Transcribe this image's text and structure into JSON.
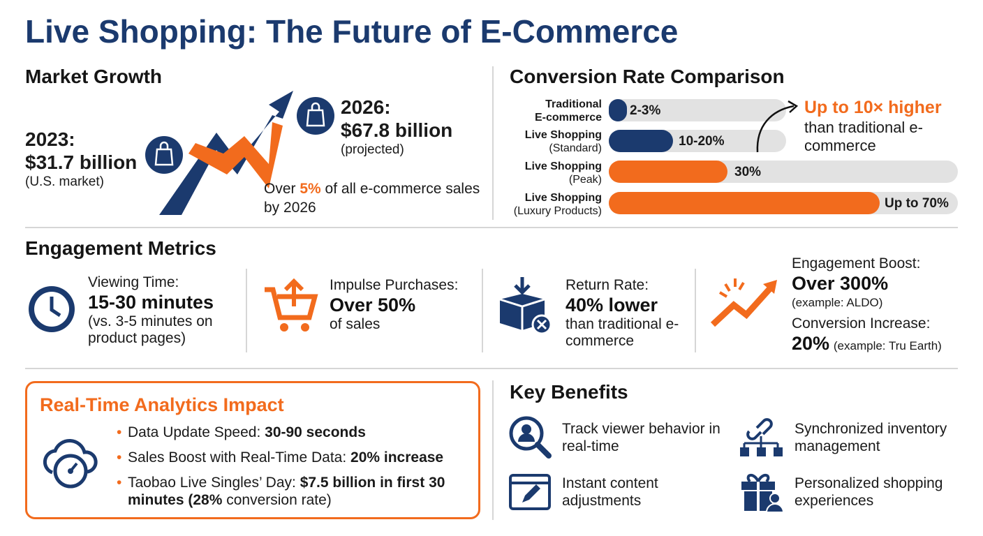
{
  "title": "Live Shopping: The Future of E-Commerce",
  "market_growth": {
    "heading": "Market Growth",
    "year_2023": {
      "label": "2023:",
      "value": "$31.7 billion",
      "note": "(U.S. market)"
    },
    "year_2026": {
      "label": "2026:",
      "value": "$67.8 billion",
      "note": "(projected)"
    },
    "share": {
      "before": "Over ",
      "highlight": "5%",
      "after": " of all e-commerce sales by 2026"
    }
  },
  "conversion": {
    "heading": "Conversion Rate Comparison",
    "rows": [
      {
        "label": "Traditional",
        "detail": "E-commerce",
        "value_label": "2-3%"
      },
      {
        "label": "Live Shopping",
        "detail": "(Standard)",
        "value_label": "10-20%"
      },
      {
        "label": "Live Shopping",
        "detail": "(Peak)",
        "value_label": "30%"
      },
      {
        "label": "Live Shopping",
        "detail": "(Luxury Products)",
        "value_label": "Up to 70%"
      }
    ],
    "callout": {
      "highlight": "Up to 10× higher",
      "text": "than traditional e-commerce"
    }
  },
  "engagement": {
    "heading": "Engagement Metrics",
    "items": [
      {
        "label": "Viewing Time:",
        "value": "15-30 minutes",
        "note": "(vs. 3-5 minutes on product pages)"
      },
      {
        "label": "Impulse Purchases:",
        "value": "Over 50%",
        "note": "of sales"
      },
      {
        "label": "Return Rate:",
        "value": "40% lower",
        "note": "than traditional e-commerce"
      }
    ],
    "boost": {
      "label": "Engagement Boost:",
      "value": "Over 300%",
      "note": "(example: ALDO)",
      "label2": "Conversion Increase:",
      "value2": "20%",
      "note2": "(example: Tru Earth)"
    }
  },
  "analytics": {
    "heading": "Real-Time Analytics Impact",
    "bullets": [
      {
        "text": "Data Update Speed: ",
        "bold": "30-90 seconds",
        "after": ""
      },
      {
        "text": "Sales Boost with Real-Time Data: ",
        "bold": "20% increase",
        "after": ""
      },
      {
        "text": "Taobao Live Singles’ Day: ",
        "bold": "$7.5 billion in first 30 minutes (28%",
        "after": " conversion rate)"
      }
    ]
  },
  "benefits": {
    "heading": "Key Benefits",
    "items": [
      "Track viewer behavior in real-time",
      "Instant content adjustments",
      "Synchronized inventory management",
      "Personalized shopping experiences"
    ]
  }
}
